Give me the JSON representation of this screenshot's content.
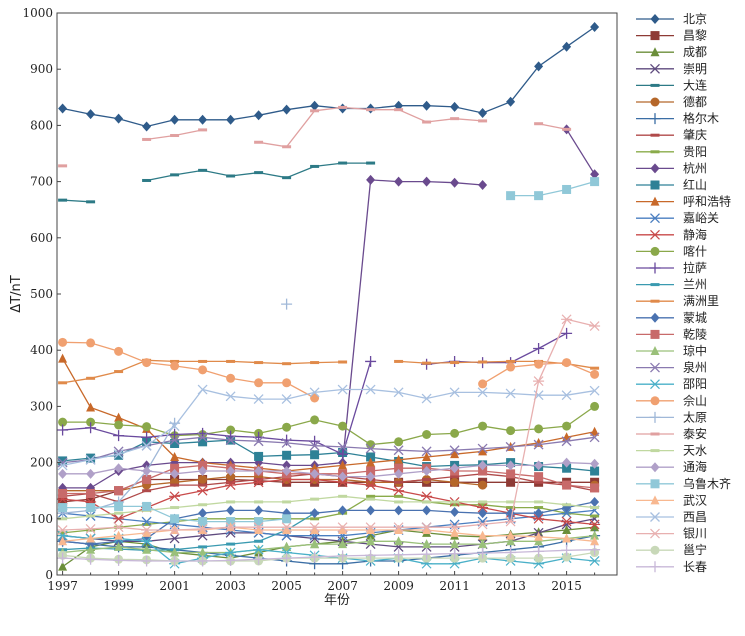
{
  "chart_data": {
    "type": "line",
    "xlabel": "年份",
    "ylabel": "ΔT/nT",
    "xlim": [
      1996.8,
      2016.8
    ],
    "ylim": [
      0,
      1000
    ],
    "x_ticks": [
      1997,
      1999,
      2001,
      2003,
      2005,
      2007,
      2009,
      2011,
      2013,
      2015
    ],
    "y_ticks": [
      0,
      100,
      200,
      300,
      400,
      500,
      600,
      700,
      800,
      900,
      1000
    ],
    "grid": false,
    "legend": "right",
    "x": [
      1997,
      1998,
      1999,
      2000,
      2001,
      2002,
      2003,
      2004,
      2005,
      2006,
      2007,
      2008,
      2009,
      2010,
      2011,
      2012,
      2013,
      2014,
      2015,
      2016
    ],
    "series": [
      {
        "name": "北京",
        "color": "#2f5b8a",
        "marker": "diamond",
        "values": [
          830,
          820,
          812,
          798,
          810,
          810,
          810,
          818,
          828,
          835,
          830,
          830,
          835,
          835,
          833,
          822,
          842,
          905,
          940,
          975
        ]
      },
      {
        "name": "昌黎",
        "color": "#8e3a35",
        "marker": "square",
        "values": [
          130,
          135,
          150,
          170,
          170,
          170,
          170,
          168,
          165,
          165,
          165,
          165,
          165,
          165,
          165,
          165,
          165,
          165,
          165,
          165
        ]
      },
      {
        "name": "成都",
        "color": "#6b8e3a",
        "marker": "triangle",
        "values": [
          15,
          50,
          60,
          55,
          40,
          35,
          30,
          40,
          50,
          55,
          60,
          70,
          80,
          75,
          70,
          68,
          72,
          76,
          80,
          85
        ]
      },
      {
        "name": "崇明",
        "color": "#5e4a7e",
        "marker": "x",
        "values": [
          70,
          65,
          60,
          60,
          65,
          70,
          75,
          75,
          70,
          65,
          60,
          55,
          50,
          50,
          50,
          55,
          60,
          75,
          90,
          100
        ]
      },
      {
        "name": "大连",
        "color": "#2d7a86",
        "marker": "star",
        "values": [
          667,
          664,
          null,
          702,
          712,
          720,
          710,
          716,
          707,
          727,
          733,
          733,
          null,
          null,
          null,
          null,
          null,
          null,
          null,
          null
        ]
      },
      {
        "name": "德都",
        "color": "#b5672a",
        "marker": "circle",
        "values": [
          150,
          150,
          150,
          160,
          165,
          170,
          175,
          175,
          170,
          170,
          170,
          165,
          165,
          170,
          165,
          160,
          null,
          null,
          null,
          160
        ]
      },
      {
        "name": "格尔木",
        "color": "#3b6ea5",
        "marker": "plus",
        "values": [
          60,
          55,
          50,
          50,
          45,
          40,
          35,
          30,
          25,
          20,
          20,
          25,
          25,
          30,
          35,
          40,
          45,
          50,
          60,
          70
        ]
      },
      {
        "name": "肇庆",
        "color": "#b04a4a",
        "marker": "dash",
        "values": [
          140,
          145,
          130,
          150,
          160,
          160,
          165,
          170,
          175,
          180,
          175,
          170,
          165,
          170,
          175,
          180,
          175,
          165,
          160,
          150
        ]
      },
      {
        "name": "贵阳",
        "color": "#8aab4a",
        "marker": "dash",
        "values": [
          75,
          80,
          85,
          90,
          95,
          100,
          100,
          100,
          100,
          100,
          110,
          140,
          140,
          130,
          125,
          125,
          120,
          120,
          110,
          105
        ]
      },
      {
        "name": "杭州",
        "color": "#6a4a8e",
        "marker": "diamond",
        "values": [
          155,
          155,
          185,
          195,
          200,
          200,
          200,
          200,
          195,
          195,
          200,
          703,
          700,
          700,
          698,
          694,
          null,
          null,
          793,
          713
        ]
      },
      {
        "name": "红山",
        "color": "#2e8196",
        "marker": "square",
        "values": [
          203,
          208,
          213,
          237,
          234,
          237,
          240,
          211,
          213,
          214,
          218,
          210,
          202,
          193,
          195,
          196,
          200,
          193,
          190,
          185
        ]
      },
      {
        "name": "呼和浩特",
        "color": "#c8692a",
        "marker": "triangle",
        "values": [
          385,
          298,
          280,
          260,
          210,
          200,
          195,
          190,
          185,
          190,
          195,
          200,
          205,
          210,
          215,
          220,
          228,
          235,
          245,
          255
        ]
      },
      {
        "name": "嘉峪关",
        "color": "#4a7ec0",
        "marker": "x",
        "values": [
          110,
          105,
          100,
          95,
          90,
          85,
          80,
          75,
          70,
          70,
          70,
          75,
          80,
          85,
          90,
          95,
          100,
          105,
          110,
          115
        ]
      },
      {
        "name": "静海",
        "color": "#c84a4a",
        "marker": "asterisk",
        "values": [
          135,
          130,
          100,
          120,
          140,
          150,
          160,
          165,
          170,
          170,
          165,
          160,
          150,
          140,
          130,
          120,
          110,
          100,
          95,
          90
        ]
      },
      {
        "name": "喀什",
        "color": "#8aa84a",
        "marker": "circle",
        "values": [
          272,
          272,
          267,
          264,
          248,
          250,
          258,
          252,
          263,
          276,
          265,
          232,
          237,
          250,
          252,
          265,
          257,
          260,
          265,
          300
        ]
      },
      {
        "name": "拉萨",
        "color": "#6a4a9e",
        "marker": "plus",
        "values": [
          258,
          262,
          248,
          245,
          250,
          252,
          247,
          245,
          240,
          238,
          215,
          380,
          null,
          375,
          380,
          378,
          378,
          403,
          430,
          null
        ]
      },
      {
        "name": "兰州",
        "color": "#3a9ab0",
        "marker": "dash",
        "values": [
          45,
          48,
          46,
          44,
          45,
          50,
          55,
          60,
          80,
          110,
          null,
          null,
          null,
          null,
          null,
          null,
          null,
          null,
          null,
          null
        ]
      },
      {
        "name": "满洲里",
        "color": "#e08a4a",
        "marker": "dash",
        "values": [
          342,
          350,
          362,
          382,
          380,
          380,
          380,
          378,
          376,
          378,
          379,
          null,
          380,
          377,
          378,
          379,
          380,
          380,
          376,
          368
        ]
      },
      {
        "name": "蒙城",
        "color": "#4a72b0",
        "marker": "diamond",
        "values": [
          60,
          55,
          60,
          65,
          100,
          110,
          115,
          115,
          110,
          110,
          115,
          115,
          115,
          115,
          112,
          110,
          110,
          110,
          120,
          130
        ]
      },
      {
        "name": "乾陵",
        "color": "#c86a6a",
        "marker": "square",
        "values": [
          145,
          145,
          150,
          170,
          190,
          195,
          190,
          185,
          180,
          180,
          180,
          185,
          190,
          190,
          185,
          185,
          180,
          175,
          160,
          155
        ]
      },
      {
        "name": "琼中",
        "color": "#9ac07a",
        "marker": "triangle",
        "values": [
          40,
          45,
          50,
          45,
          40,
          40,
          40,
          45,
          50,
          55,
          55,
          60,
          60,
          55,
          55,
          55,
          60,
          60,
          65,
          70
        ]
      },
      {
        "name": "泉州",
        "color": "#8a7ab0",
        "marker": "x",
        "values": [
          200,
          205,
          220,
          230,
          240,
          245,
          240,
          238,
          235,
          230,
          228,
          225,
          222,
          220,
          222,
          225,
          228,
          232,
          238,
          245
        ]
      },
      {
        "name": "邵阳",
        "color": "#4ab0c8",
        "marker": "asterisk",
        "values": [
          70,
          65,
          65,
          60,
          20,
          30,
          40,
          45,
          40,
          35,
          30,
          25,
          30,
          20,
          20,
          30,
          25,
          20,
          30,
          25
        ]
      },
      {
        "name": "佘山",
        "color": "#f0a070",
        "marker": "circle",
        "values": [
          414,
          413,
          398,
          378,
          372,
          365,
          350,
          342,
          342,
          315,
          null,
          null,
          null,
          null,
          null,
          340,
          370,
          375,
          378,
          357
        ]
      },
      {
        "name": "太原",
        "color": "#a0b8d8",
        "marker": "plus",
        "values": [
          110,
          115,
          130,
          185,
          270,
          null,
          null,
          null,
          482,
          null,
          null,
          null,
          null,
          null,
          null,
          null,
          null,
          null,
          null,
          null
        ]
      },
      {
        "name": "泰安",
        "color": "#e0a0a0",
        "marker": "dash",
        "values": [
          728,
          null,
          null,
          775,
          782,
          792,
          null,
          770,
          762,
          826,
          832,
          828,
          828,
          806,
          812,
          808,
          null,
          803,
          793,
          null
        ]
      },
      {
        "name": "天水",
        "color": "#c0d8a0",
        "marker": "dash",
        "values": [
          100,
          105,
          110,
          115,
          120,
          125,
          130,
          130,
          130,
          135,
          140,
          135,
          130,
          130,
          130,
          130,
          130,
          130,
          125,
          120
        ]
      },
      {
        "name": "通海",
        "color": "#b0a0c8",
        "marker": "diamond",
        "values": [
          180,
          180,
          190,
          185,
          180,
          185,
          185,
          185,
          185,
          180,
          175,
          175,
          180,
          185,
          190,
          195,
          195,
          195,
          200,
          198
        ]
      },
      {
        "name": "乌鲁木齐",
        "color": "#90c8d8",
        "marker": "square",
        "values": [
          120,
          120,
          122,
          122,
          100,
          95,
          95,
          95,
          100,
          null,
          null,
          null,
          null,
          null,
          null,
          null,
          675,
          675,
          686,
          700
        ]
      },
      {
        "name": "武汉",
        "color": "#f8b890",
        "marker": "triangle",
        "values": [
          60,
          65,
          70,
          75,
          80,
          80,
          85,
          80,
          80,
          80,
          80,
          80,
          80,
          80,
          75,
          70,
          70,
          68,
          65,
          60
        ]
      },
      {
        "name": "西昌",
        "color": "#a8c0e0",
        "marker": "x",
        "values": [
          195,
          205,
          215,
          230,
          265,
          330,
          318,
          313,
          313,
          325,
          330,
          330,
          325,
          314,
          325,
          325,
          323,
          320,
          320,
          328
        ]
      },
      {
        "name": "银川",
        "color": "#e8b0b0",
        "marker": "asterisk",
        "values": [
          80,
          82,
          85,
          80,
          80,
          82,
          85,
          85,
          85,
          85,
          85,
          85,
          85,
          85,
          85,
          90,
          95,
          345,
          455,
          443
        ]
      },
      {
        "name": "邕宁",
        "color": "#c8d8b8",
        "marker": "circle",
        "values": [
          35,
          30,
          28,
          27,
          25,
          25,
          25,
          25,
          30,
          30,
          30,
          30,
          30,
          30,
          30,
          30,
          30,
          30,
          32,
          40
        ]
      },
      {
        "name": "长春",
        "color": "#c8b8d8",
        "marker": "plus",
        "values": [
          30,
          28,
          26,
          25,
          25,
          25,
          26,
          28,
          30,
          32,
          34,
          35,
          36,
          37,
          38,
          39,
          40,
          42,
          44,
          45
        ]
      }
    ]
  }
}
